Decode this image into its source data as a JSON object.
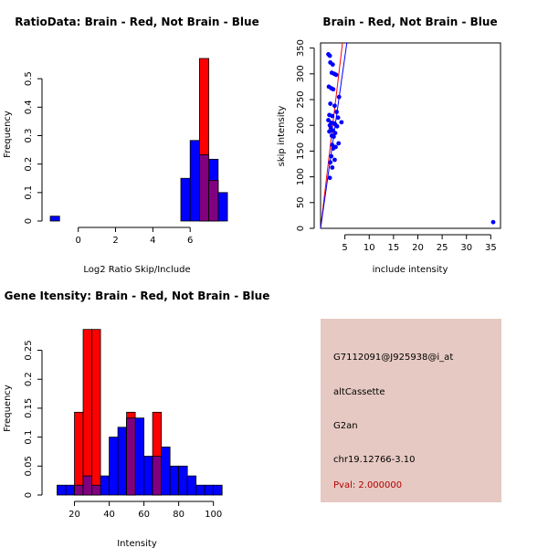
{
  "chart_data": [
    {
      "type": "histogram",
      "title": "RatioData: Brain - Red, Not Brain - Blue",
      "xlabel": "Log2 Ratio Skip/Include",
      "ylabel": "Frequency",
      "xlim": [
        -1.6,
        7.9
      ],
      "ylim": [
        0,
        0.6
      ],
      "xticks": [
        0,
        2,
        4,
        6
      ],
      "yticks": [
        0,
        0.1,
        0.2,
        0.3,
        0.4,
        0.5
      ],
      "series": [
        {
          "name": "Not Brain",
          "color": "#0000ff",
          "bins": [
            [
              -1.5,
              -1.0,
              0.017
            ],
            [
              5.5,
              6.0,
              0.15
            ],
            [
              6.0,
              6.5,
              0.283
            ],
            [
              6.5,
              7.0,
              0.233
            ],
            [
              7.0,
              7.5,
              0.217
            ],
            [
              7.5,
              8.0,
              0.1
            ]
          ]
        },
        {
          "name": "Brain",
          "color": "#ff0000",
          "bins": [
            [
              6.5,
              7.0,
              0.571
            ],
            [
              7.0,
              7.5,
              0.143
            ]
          ]
        }
      ],
      "overlap_color": "#800080"
    },
    {
      "type": "scatter",
      "title": "Brain - Red, Not Brain - Blue",
      "xlabel": "include intensity",
      "ylabel": "skip intensity",
      "xlim": [
        0,
        37
      ],
      "ylim": [
        0,
        360
      ],
      "xticks": [
        5,
        10,
        15,
        20,
        25,
        30,
        35
      ],
      "yticks": [
        0,
        50,
        100,
        150,
        200,
        250,
        300,
        350
      ],
      "points": [
        [
          1.6,
          338
        ],
        [
          1.9,
          335
        ],
        [
          2.0,
          322
        ],
        [
          2.5,
          318
        ],
        [
          2.3,
          302
        ],
        [
          2.8,
          300
        ],
        [
          3.2,
          298
        ],
        [
          2.2,
          272
        ],
        [
          2.6,
          270
        ],
        [
          1.7,
          275
        ],
        [
          3.8,
          255
        ],
        [
          2.0,
          242
        ],
        [
          2.9,
          238
        ],
        [
          3.3,
          226
        ],
        [
          1.8,
          220
        ],
        [
          2.4,
          218
        ],
        [
          3.6,
          215
        ],
        [
          1.6,
          210
        ],
        [
          2.2,
          205
        ],
        [
          2.7,
          204
        ],
        [
          3.0,
          202
        ],
        [
          4.3,
          206
        ],
        [
          1.9,
          200
        ],
        [
          3.4,
          198
        ],
        [
          2.1,
          195
        ],
        [
          2.5,
          190
        ],
        [
          1.8,
          188
        ],
        [
          3.0,
          185
        ],
        [
          2.3,
          180
        ],
        [
          2.7,
          178
        ],
        [
          3.7,
          165
        ],
        [
          2.4,
          162
        ],
        [
          3.1,
          158
        ],
        [
          2.6,
          155
        ],
        [
          2.2,
          140
        ],
        [
          2.9,
          133
        ],
        [
          2.0,
          128
        ],
        [
          2.4,
          118
        ],
        [
          1.9,
          98
        ],
        [
          35.5,
          12
        ]
      ],
      "lines": [
        {
          "color": "#ff0000",
          "from": [
            0,
            0
          ],
          "to": [
            4.5,
            360
          ]
        },
        {
          "color": "#0000ff",
          "from": [
            0,
            0
          ],
          "to": [
            5.4,
            360
          ]
        }
      ]
    },
    {
      "type": "histogram",
      "title": "Gene Itensity: Brain - Red, Not Brain - Blue",
      "xlabel": "Intensity",
      "ylabel": "Frequency",
      "xlim": [
        5,
        107
      ],
      "ylim": [
        0,
        0.295
      ],
      "xticks": [
        20,
        40,
        60,
        80,
        100
      ],
      "yticks": [
        0,
        0.05,
        0.1,
        0.15,
        0.2,
        0.25
      ],
      "series": [
        {
          "name": "Not Brain",
          "color": "#0000ff",
          "bins": [
            [
              10,
              15,
              0.017
            ],
            [
              15,
              20,
              0.017
            ],
            [
              20,
              25,
              0.017
            ],
            [
              25,
              30,
              0.033
            ],
            [
              30,
              35,
              0.017
            ],
            [
              35,
              40,
              0.033
            ],
            [
              40,
              45,
              0.1
            ],
            [
              45,
              50,
              0.117
            ],
            [
              50,
              55,
              0.133
            ],
            [
              55,
              60,
              0.133
            ],
            [
              60,
              65,
              0.067
            ],
            [
              65,
              70,
              0.067
            ],
            [
              70,
              75,
              0.083
            ],
            [
              75,
              80,
              0.05
            ],
            [
              80,
              85,
              0.05
            ],
            [
              85,
              90,
              0.033
            ],
            [
              90,
              95,
              0.017
            ],
            [
              95,
              100,
              0.017
            ],
            [
              100,
              105,
              0.017
            ]
          ]
        },
        {
          "name": "Brain",
          "color": "#ff0000",
          "bins": [
            [
              20,
              25,
              0.143
            ],
            [
              25,
              30,
              0.286
            ],
            [
              30,
              35,
              0.286
            ],
            [
              50,
              55,
              0.143
            ],
            [
              65,
              70,
              0.143
            ]
          ]
        }
      ],
      "overlap_color": "#800080"
    }
  ],
  "info_panel": {
    "probe": "G7112091@J925938@i_at",
    "event_type": "altCassette",
    "gene": "G2an",
    "location": "chr19.12766-3.10",
    "pval": "Pval: 2.000000"
  }
}
